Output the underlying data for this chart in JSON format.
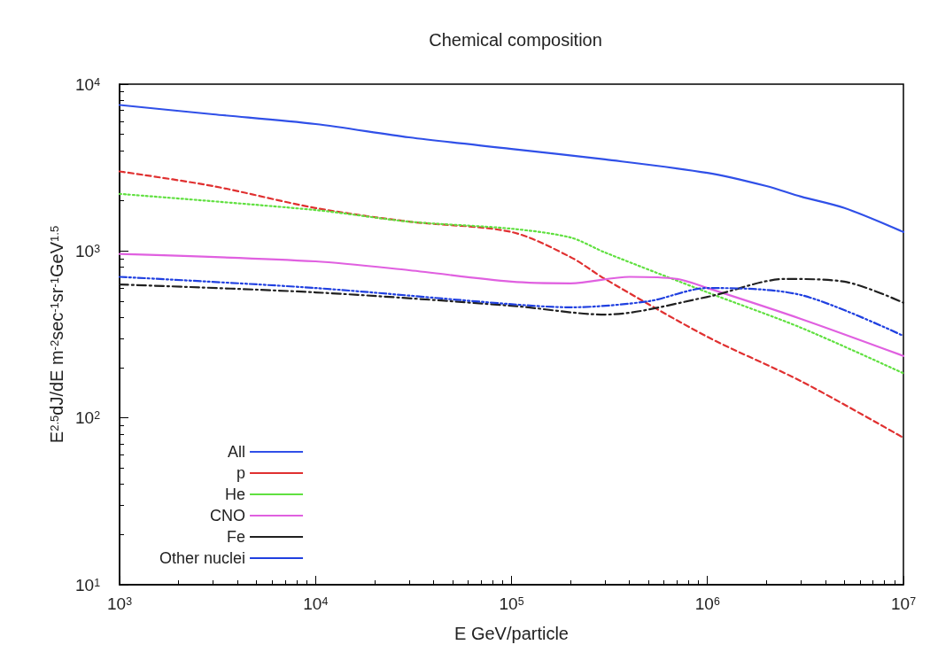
{
  "chart_data": {
    "type": "line",
    "title": "Chemical composition",
    "xlabel": "E GeV/particle",
    "ylabel": "E$^{2.5}$dJ/dE m$^{-2}$sec$^{-1}$sr$^{-1}$GeV$^{1.5}$",
    "log": "xy",
    "grid": false,
    "legend": "bottom left",
    "marker": "none",
    "xlim": [
      1000,
      10000000
    ],
    "xticks": [
      {
        "value": 1000,
        "label": "10$^{3}$"
      },
      {
        "value": 10000,
        "label": "10$^{4}$"
      },
      {
        "value": 100000,
        "label": "10$^{5}$"
      },
      {
        "value": 1000000,
        "label": "10$^{6}$"
      },
      {
        "value": 10000000,
        "label": "10$^{7}$"
      }
    ],
    "ylim": [
      10,
      10000
    ],
    "yticks": [
      {
        "value": 10,
        "label": "10$^{1}$"
      },
      {
        "value": 100,
        "label": "10$^{2}$"
      },
      {
        "value": 1000,
        "label": "10$^{3}$"
      },
      {
        "value": 10000,
        "label": "10$^{4}$"
      }
    ],
    "series": [
      {
        "name": "All",
        "color": "#3050e8",
        "line_style": "solid",
        "x": [
          1000,
          3000,
          10000,
          30000,
          100000,
          300000,
          1000000,
          2000000,
          3000000,
          5000000,
          10000000
        ],
        "values": [
          7500,
          6600,
          5770,
          4800,
          4090,
          3540,
          2940,
          2450,
          2120,
          1810,
          1300
        ]
      },
      {
        "name": "p",
        "color": "#e03030",
        "line_style": "dashed",
        "x": [
          1000,
          3000,
          10000,
          30000,
          100000,
          200000,
          300000,
          1000000,
          3000000,
          10000000
        ],
        "values": [
          3000,
          2450,
          1810,
          1500,
          1300,
          920,
          680,
          306,
          166,
          76
        ]
      },
      {
        "name": "He",
        "color": "#60e040",
        "line_style": "dotted",
        "x": [
          1000,
          10000,
          30000,
          100000,
          200000,
          300000,
          1000000,
          3000000,
          10000000
        ],
        "values": [
          2200,
          1760,
          1500,
          1360,
          1205,
          980,
          565,
          347,
          185
        ]
      },
      {
        "name": "CNO",
        "color": "#e060e0",
        "line_style": "solid",
        "x": [
          1000,
          10000,
          30000,
          100000,
          200000,
          400000,
          700000,
          1000000,
          3000000,
          10000000
        ],
        "values": [
          960,
          867,
          767,
          655,
          640,
          700,
          680,
          600,
          392,
          235
        ]
      },
      {
        "name": "Fe",
        "color": "#202020",
        "line_style": "dashdot",
        "x": [
          1000,
          10000,
          100000,
          300000,
          1000000,
          2500000,
          5000000,
          10000000
        ],
        "values": [
          630,
          565,
          470,
          416,
          531,
          680,
          655,
          490
        ]
      },
      {
        "name": "Other nuclei",
        "color": "#2040e0",
        "line_style": "dashdotdot",
        "x": [
          1000,
          10000,
          100000,
          200000,
          500000,
          1000000,
          3000000,
          10000000
        ],
        "values": [
          700,
          600,
          480,
          460,
          500,
          600,
          545,
          310
        ]
      }
    ]
  }
}
